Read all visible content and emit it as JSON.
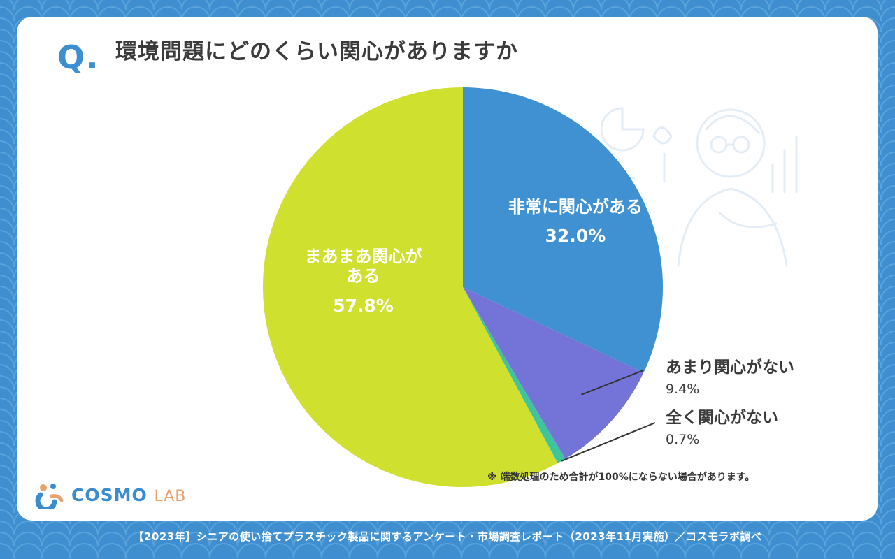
{
  "header": {
    "q_mark": "Q.",
    "title": "環境問題にどのくらい関心がありますか"
  },
  "chart_data": {
    "type": "pie",
    "title": "環境問題にどのくらい関心がありますか",
    "slices": [
      {
        "label": "非常に関心がある",
        "value": 32.0,
        "value_label": "32.0%",
        "color": "#3f91d2",
        "label_placement": "inside"
      },
      {
        "label": "あまり関心がない",
        "value": 9.4,
        "value_label": "9.4%",
        "color": "#7474d8",
        "label_placement": "outside"
      },
      {
        "label": "全く関心がない",
        "value": 0.7,
        "value_label": "0.7%",
        "color": "#3fc49e",
        "label_placement": "outside"
      },
      {
        "label": "まあまあ関心がある",
        "value": 57.8,
        "value_label": "57.8%",
        "color": "#d0e02e",
        "label_placement": "inside"
      }
    ],
    "start_angle": "12 o'clock",
    "direction": "clockwise"
  },
  "labels": {
    "s0_name": "非常に関心がある",
    "s0_pct": "32.0%",
    "s1_name": "あまり関心がない",
    "s1_pct": "9.4%",
    "s2_name": "全く関心がない",
    "s2_pct": "0.7%",
    "s3_name_line1": "まあまあ関心が",
    "s3_name_line2": "ある",
    "s3_pct": "57.8%"
  },
  "note": "※ 端数処理のため合計が100%にならない場合があります。",
  "logo": {
    "main": "COSMO",
    "lab": "LAB"
  },
  "footer": "【2023年】シニアの使い捨てプラスチック製品に関するアンケート・市場調査レポート（2023年11月実施）／コスモラボ調べ",
  "colors": {
    "background": "#3f8fd0",
    "accent": "#3d8fd1",
    "logo_accent": "#e8a26e"
  }
}
